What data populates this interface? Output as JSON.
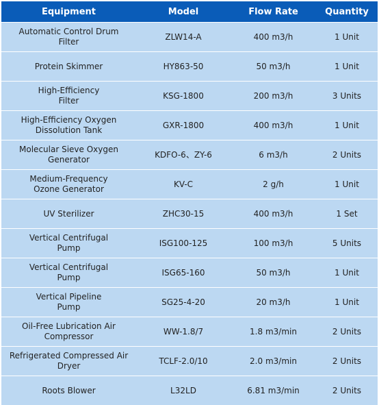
{
  "colors": {
    "header_bg": "#0a5cb8",
    "header_text": "#ffffff",
    "row_bg": "#bcd8f2",
    "row_text": "#222222"
  },
  "table": {
    "headers": [
      "Equipment",
      "Model",
      "Flow Rate",
      "Quantity"
    ],
    "rows": [
      [
        "Automatic Control Drum Filter",
        "ZLW14-A",
        "400 m3/h",
        "1 Unit"
      ],
      [
        "Protein Skimmer",
        "HY863-50",
        "50 m3/h",
        "1 Unit"
      ],
      [
        "High-Efficiency Filter",
        "KSG-1800",
        "200 m3/h",
        "3 Units"
      ],
      [
        "High-Efficiency Oxygen Dissolution Tank",
        "GXR-1800",
        "400 m3/h",
        "1 Unit"
      ],
      [
        "Molecular Sieve Oxygen Generator",
        "KDFO-6、ZY-6",
        "6 m3/h",
        "2 Units"
      ],
      [
        "Medium-Frequency Ozone Generator",
        "KV-C",
        "2 g/h",
        "1 Unit"
      ],
      [
        "UV Sterilizer",
        "ZHC30-15",
        "400 m3/h",
        "1 Set"
      ],
      [
        "Vertical Centrifugal Pump",
        "ISG100-125",
        "100 m3/h",
        "5 Units"
      ],
      [
        "Vertical Centrifugal Pump",
        "ISG65-160",
        "50 m3/h",
        "1 Unit"
      ],
      [
        "Vertical Pipeline Pump",
        "SG25-4-20",
        "20 m3/h",
        "1 Unit"
      ],
      [
        "Oil-Free Lubrication Air Compressor",
        "WW-1.8/7",
        "1.8 m3/min",
        "2 Units"
      ],
      [
        "Refrigerated Compressed Air Dryer",
        "TCLF-2.0/10",
        "2.0 m3/min",
        "2 Units"
      ],
      [
        "Roots Blower",
        "L32LD",
        "6.81 m3/min",
        "2 Units"
      ]
    ]
  }
}
